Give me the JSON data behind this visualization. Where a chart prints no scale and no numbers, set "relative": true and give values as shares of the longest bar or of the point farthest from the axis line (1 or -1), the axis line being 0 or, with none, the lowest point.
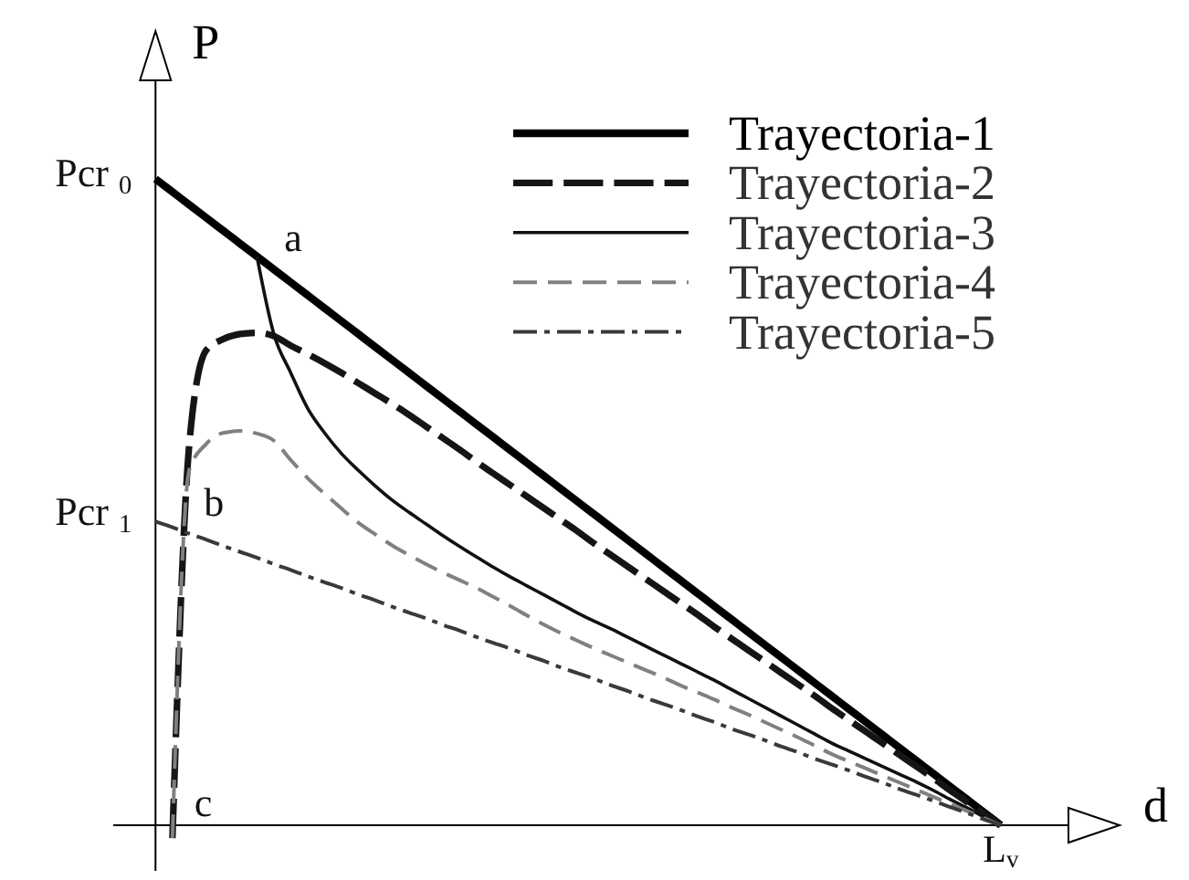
{
  "chart_data": {
    "type": "line",
    "relative": true,
    "xlabel": "d",
    "ylabel": "P",
    "legend": "top right",
    "categories": [
      null,
      null,
      null,
      null,
      null,
      null,
      null,
      null,
      null,
      null,
      null,
      null,
      null,
      null,
      null,
      null,
      null,
      null,
      null,
      null,
      null,
      null,
      null,
      null,
      null,
      null,
      null,
      null,
      null,
      null,
      null,
      null,
      null,
      null,
      null,
      null,
      null,
      null,
      null,
      null,
      null,
      null,
      null,
      null,
      null,
      null,
      null,
      null,
      null,
      null,
      null
    ],
    "series": [
      {
        "name": "Trayectoria-1",
        "color": "#000000",
        "line_style": "solid",
        "values": [
          1,
          0.98,
          0.96,
          0.94,
          0.92,
          0.9,
          0.88,
          0.86,
          0.84,
          0.82,
          0.8,
          0.78,
          0.76,
          0.74,
          0.72,
          0.7,
          0.68,
          0.66,
          0.64,
          0.62,
          0.6,
          0.58,
          0.56,
          0.54,
          0.52,
          0.5,
          0.48,
          0.46,
          0.44,
          0.42,
          0.4,
          0.38,
          0.36,
          0.34,
          0.32,
          0.3,
          0.28,
          0.26,
          0.24,
          0.22,
          0.2,
          0.18,
          0.16,
          0.14,
          0.12,
          0.1,
          0.08,
          0.06,
          0.04,
          0.02,
          0
        ]
      },
      {
        "name": "Trayectoria-2",
        "color": "#151515",
        "line_style": "dashed",
        "values": [
          null,
          -0.02,
          0.59,
          0.735,
          0.752,
          0.76,
          0.762,
          0.757,
          0.742,
          0.729,
          0.715,
          0.7,
          0.684,
          0.668,
          0.652,
          0.635,
          0.617,
          0.599,
          0.581,
          0.562,
          0.544,
          0.526,
          0.508,
          0.49,
          0.472,
          0.454,
          0.435,
          0.417,
          0.399,
          0.381,
          0.363,
          0.345,
          0.327,
          0.308,
          0.29,
          0.272,
          0.254,
          0.236,
          0.218,
          0.2,
          0.181,
          0.163,
          0.145,
          0.127,
          0.109,
          0.091,
          0.073,
          0.054,
          0.036,
          0.018,
          0
        ]
      },
      {
        "name": "Trayectoria-3",
        "color": "#111111",
        "line_style": "solid",
        "values": [
          null,
          null,
          null,
          null,
          null,
          null,
          0.88,
          0.76,
          0.7,
          0.645,
          0.607,
          0.575,
          0.549,
          0.525,
          0.503,
          0.484,
          0.466,
          0.448,
          0.431,
          0.415,
          0.399,
          0.384,
          0.37,
          0.356,
          0.342,
          0.328,
          0.315,
          0.303,
          0.29,
          0.277,
          0.264,
          0.251,
          0.238,
          0.225,
          0.211,
          0.197,
          0.183,
          0.169,
          0.155,
          0.141,
          0.127,
          0.115,
          0.103,
          0.091,
          0.079,
          0.067,
          0.054,
          0.04,
          0.027,
          0.013,
          0
        ]
      },
      {
        "name": "Trayectoria-4",
        "color": "#808080",
        "line_style": "dashed",
        "values": [
          null,
          -0.02,
          0.55,
          0.59,
          0.607,
          0.61,
          0.606,
          0.595,
          0.565,
          0.537,
          0.513,
          0.49,
          0.468,
          0.45,
          0.433,
          0.418,
          0.404,
          0.391,
          0.379,
          0.367,
          0.353,
          0.339,
          0.324,
          0.31,
          0.297,
          0.285,
          0.273,
          0.262,
          0.251,
          0.24,
          0.229,
          0.217,
          0.206,
          0.195,
          0.183,
          0.172,
          0.16,
          0.148,
          0.136,
          0.123,
          0.11,
          0.099,
          0.088,
          0.077,
          0.066,
          0.055,
          0.044,
          0.033,
          0.022,
          0.011,
          0
        ]
      },
      {
        "name": "Trayectoria-5",
        "color": "#3a3a3a",
        "line_style": "dashdot",
        "values": [
          0.47,
          0.461,
          0.451,
          0.442,
          0.432,
          0.423,
          0.414,
          0.404,
          0.395,
          0.385,
          0.376,
          0.367,
          0.357,
          0.348,
          0.338,
          0.329,
          0.32,
          0.31,
          0.301,
          0.291,
          0.282,
          0.273,
          0.263,
          0.254,
          0.244,
          0.235,
          0.226,
          0.216,
          0.207,
          0.197,
          0.188,
          0.179,
          0.169,
          0.16,
          0.15,
          0.141,
          0.132,
          0.122,
          0.113,
          0.103,
          0.094,
          0.085,
          0.075,
          0.066,
          0.056,
          0.047,
          0.038,
          0.028,
          0.019,
          0.009,
          0
        ]
      }
    ],
    "annotations": [
      "Pcr $_{0}$",
      "Pcr $_{1}$",
      "a",
      "b",
      "c",
      "L$_{v}$"
    ]
  }
}
